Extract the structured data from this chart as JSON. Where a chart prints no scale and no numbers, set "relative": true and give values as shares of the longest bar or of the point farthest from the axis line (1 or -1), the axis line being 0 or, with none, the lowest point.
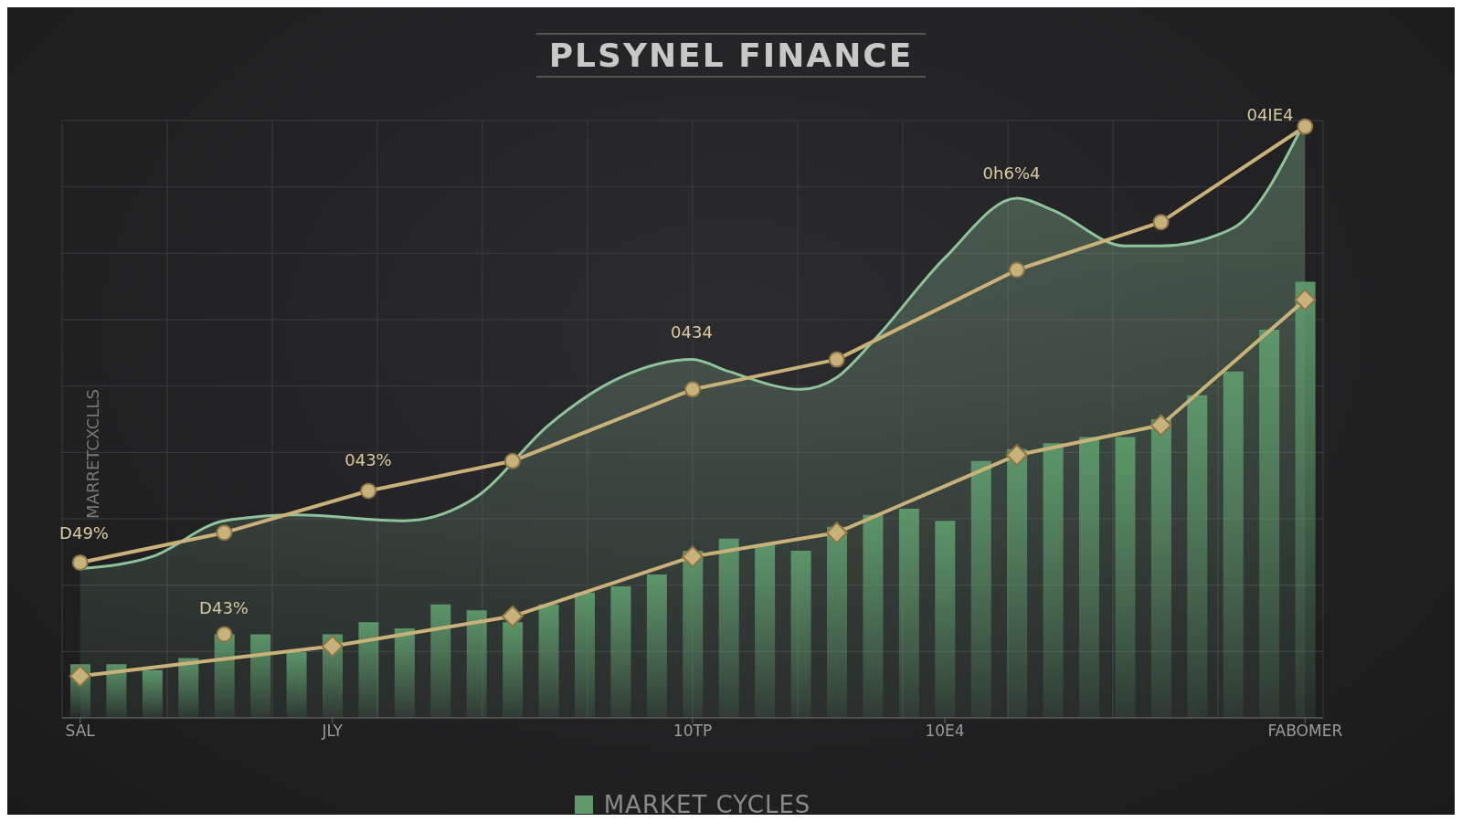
{
  "chart_data": {
    "type": "bar",
    "title": "PLSYNEL FINANCE",
    "ylabel": "MARRETCXCLLS",
    "relative": true,
    "grid": true,
    "legend": "bottom",
    "categories": [
      "SAL",
      null,
      null,
      null,
      null,
      null,
      null,
      "JLY",
      null,
      null,
      null,
      null,
      null,
      null,
      null,
      null,
      null,
      "10TP",
      null,
      null,
      null,
      null,
      null,
      null,
      "10E4",
      null,
      null,
      null,
      null,
      null,
      null,
      null,
      null,
      null,
      "FABOMER"
    ],
    "series": [
      {
        "name": "MARKET CYCLES",
        "color": "#5e9a6c",
        "values": [
          0.09,
          0.09,
          0.08,
          0.1,
          0.14,
          0.14,
          0.11,
          0.14,
          0.16,
          0.15,
          0.19,
          0.18,
          0.16,
          0.19,
          0.21,
          0.22,
          0.24,
          0.28,
          0.3,
          0.29,
          0.28,
          0.32,
          0.34,
          0.35,
          0.33,
          0.43,
          0.45,
          0.46,
          0.47,
          0.47,
          0.5,
          0.54,
          0.58,
          0.65,
          0.73
        ]
      },
      {
        "type": "area",
        "color": "#8fc49a",
        "values": [
          0.25,
          null,
          0.27,
          null,
          0.33,
          null,
          0.34,
          null,
          null,
          0.33,
          null,
          0.37,
          null,
          0.49,
          null,
          0.57,
          null,
          0.6,
          0.58,
          null,
          0.55,
          0.57,
          0.63,
          null,
          0.77,
          null,
          0.87,
          0.85,
          null,
          0.79,
          0.79,
          null,
          0.82,
          null,
          1
        ]
      },
      {
        "type": "line",
        "color": "#c9b27a",
        "marker": "circle",
        "line_style": "solid",
        "values": [
          0.26,
          null,
          null,
          null,
          0.31,
          null,
          null,
          null,
          0.38,
          null,
          null,
          null,
          0.43,
          null,
          null,
          null,
          null,
          0.55,
          null,
          null,
          null,
          0.6,
          null,
          null,
          null,
          null,
          0.75,
          null,
          null,
          null,
          0.83,
          null,
          null,
          null,
          0.99
        ]
      },
      {
        "type": "line",
        "color": "#c9b27a",
        "marker": "diamond",
        "line_style": "solid",
        "values": [
          0.07,
          null,
          null,
          null,
          null,
          null,
          null,
          0.12,
          null,
          null,
          null,
          null,
          0.17,
          null,
          null,
          null,
          null,
          0.27,
          null,
          null,
          null,
          0.31,
          null,
          null,
          null,
          null,
          0.44,
          null,
          null,
          null,
          0.49,
          null,
          null,
          null,
          0.7
        ]
      },
      {
        "type": "scatter",
        "color": "#c9b27a",
        "marker": "circle",
        "values": [
          null,
          null,
          null,
          null,
          0.14,
          null,
          null,
          null,
          null,
          null,
          null,
          null,
          null,
          null,
          null,
          null,
          null,
          null,
          null,
          null,
          null,
          null,
          null,
          null,
          null,
          null,
          null,
          null,
          null,
          null,
          null,
          null,
          null,
          null,
          null
        ]
      }
    ],
    "annotations": [
      "D49%",
      "D43%",
      "043%",
      "0434",
      "0h6%4",
      "04IE4"
    ]
  }
}
